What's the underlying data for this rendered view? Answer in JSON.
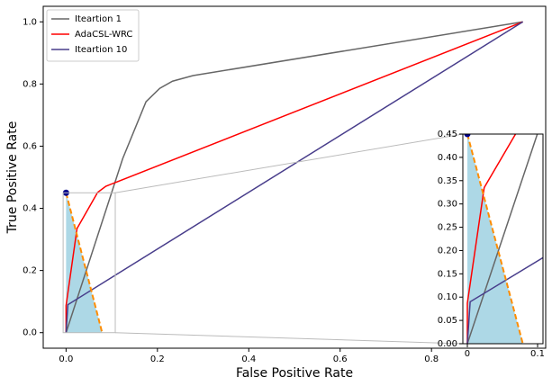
{
  "chart_data": {
    "type": "line",
    "xlabel": "False Positive Rate",
    "ylabel": "True Positive Rate",
    "xlim": [
      -0.05,
      1.05
    ],
    "ylim": [
      -0.05,
      1.05
    ],
    "xticks": [
      {
        "value": 0,
        "label": "0.0"
      },
      {
        "value": 0.2,
        "label": "0.2"
      },
      {
        "value": 0.4,
        "label": "0.4"
      },
      {
        "value": 0.6,
        "label": "0.6"
      },
      {
        "value": 0.8,
        "label": "0.8"
      }
    ],
    "yticks": [
      {
        "value": 0,
        "label": "0.0"
      },
      {
        "value": 0.2,
        "label": "0.2"
      },
      {
        "value": 0.4,
        "label": "0.4"
      },
      {
        "value": 0.6,
        "label": "0.6"
      },
      {
        "value": 0.8,
        "label": "0.8"
      },
      {
        "value": 1,
        "label": "1.0"
      }
    ],
    "legend": "upper left",
    "series": [
      {
        "name": "Iteartion 1",
        "color": "#666666",
        "x": [
          0,
          0.124,
          0.175,
          0.205,
          0.233,
          0.278,
          1
        ],
        "y": [
          0,
          0.56,
          0.743,
          0.786,
          0.809,
          0.827,
          1
        ]
      },
      {
        "name": "AdaCSL-WRC",
        "color": "#ff0000",
        "x": [
          0,
          0,
          0.024,
          0.069,
          0.087,
          1
        ],
        "y": [
          0,
          0.087,
          0.335,
          0.451,
          0.471,
          1
        ]
      },
      {
        "name": "Iteartion 10",
        "color": "#483d8b",
        "x": [
          0,
          0.004,
          1
        ],
        "y": [
          0,
          0.09,
          1
        ]
      }
    ],
    "fill": {
      "color": "#add8e6",
      "x": [
        0,
        0.079,
        0
      ],
      "y": [
        0.45,
        0,
        0
      ]
    },
    "dashed_line": {
      "color": "#ff8c00",
      "x": [
        0,
        0.079
      ],
      "y": [
        0.45,
        0
      ]
    },
    "point": {
      "color": "#00008b",
      "x": 0,
      "y": 0.45
    },
    "inset": {
      "xlim": [
        -0.0064,
        0.1077
      ],
      "ylim": [
        0,
        0.45
      ],
      "xticks": [
        0,
        0.1
      ],
      "yticks": [
        {
          "value": 0,
          "label": "0.00"
        },
        {
          "value": 0.05,
          "label": "0.05"
        },
        {
          "value": 0.1,
          "label": "0.10"
        },
        {
          "value": 0.15,
          "label": "0.15"
        },
        {
          "value": 0.2,
          "label": "0.20"
        },
        {
          "value": 0.25,
          "label": "0.25"
        },
        {
          "value": 0.3,
          "label": "0.30"
        },
        {
          "value": 0.35,
          "label": "0.35"
        },
        {
          "value": 0.4,
          "label": "0.40"
        },
        {
          "value": 0.45,
          "label": "0.45"
        }
      ]
    }
  }
}
